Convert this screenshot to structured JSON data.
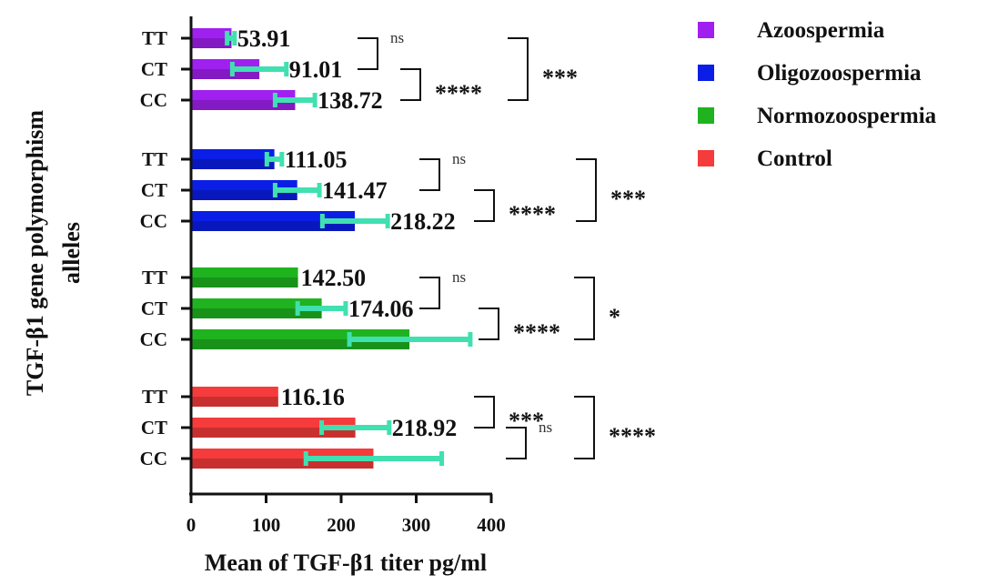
{
  "chart_data": {
    "type": "bar",
    "orientation": "horizontal",
    "xlabel": "Mean of TGF-β1 titer pg/ml",
    "ylabel": [
      "TGF-β1 gene polymorphism",
      "alleles"
    ],
    "xlim": [
      0,
      400
    ],
    "xticks": [
      "0",
      "100",
      "200",
      "300",
      "400"
    ],
    "grid": false,
    "legend_position": "top-right",
    "groups": [
      {
        "name": "Azoospermia",
        "color": "#a020f0",
        "bars": [
          {
            "category": "TT",
            "value": 53.91,
            "label": "53.91",
            "err_low": 48,
            "err_high": 58
          },
          {
            "category": "CT",
            "value": 91.01,
            "label": "91.01",
            "err_low": 55,
            "err_high": 127
          },
          {
            "category": "CC",
            "value": 138.72,
            "label": "138.72",
            "err_low": 112,
            "err_high": 165
          }
        ],
        "sig": [
          {
            "from": 0,
            "to": 1,
            "text": "ns",
            "kind": "ns"
          },
          {
            "from": 1,
            "to": 2,
            "text": "****",
            "kind": "stars"
          },
          {
            "from": 0,
            "to": 2,
            "text": "***",
            "kind": "stars"
          }
        ]
      },
      {
        "name": "Oligozoospermia",
        "color": "#0a1ee6",
        "bars": [
          {
            "category": "TT",
            "value": 111.05,
            "label": "111.05",
            "err_low": 101,
            "err_high": 121
          },
          {
            "category": "CT",
            "value": 141.47,
            "label": "141.47",
            "err_low": 112,
            "err_high": 171
          },
          {
            "category": "CC",
            "value": 218.22,
            "label": "218.22",
            "err_low": 175,
            "err_high": 262
          }
        ],
        "sig": [
          {
            "from": 0,
            "to": 1,
            "text": "ns",
            "kind": "ns"
          },
          {
            "from": 1,
            "to": 2,
            "text": "****",
            "kind": "stars"
          },
          {
            "from": 0,
            "to": 2,
            "text": "***",
            "kind": "stars"
          }
        ]
      },
      {
        "name": "Normozoospermia",
        "color": "#1fb31f",
        "bars": [
          {
            "category": "TT",
            "value": 142.5,
            "label": "142.50",
            "err_low": 142.5,
            "err_high": 142.5
          },
          {
            "category": "CT",
            "value": 174.06,
            "label": "174.06",
            "err_low": 142,
            "err_high": 206
          },
          {
            "category": "CC",
            "value": 291.0,
            "label": "",
            "err_low": 211,
            "err_high": 372
          }
        ],
        "sig": [
          {
            "from": 0,
            "to": 1,
            "text": "ns",
            "kind": "ns"
          },
          {
            "from": 1,
            "to": 2,
            "text": "****",
            "kind": "stars"
          },
          {
            "from": 0,
            "to": 2,
            "text": "*",
            "kind": "stars"
          }
        ]
      },
      {
        "name": "Control",
        "color": "#f53b3b",
        "bars": [
          {
            "category": "TT",
            "value": 116.16,
            "label": "116.16",
            "err_low": 116.16,
            "err_high": 116.16
          },
          {
            "category": "CT",
            "value": 218.92,
            "label": "218.92",
            "err_low": 174,
            "err_high": 264
          },
          {
            "category": "CC",
            "value": 243.0,
            "label": "",
            "err_low": 153,
            "err_high": 334
          }
        ],
        "sig": [
          {
            "from": 0,
            "to": 1,
            "text": "***",
            "kind": "stars"
          },
          {
            "from": 1,
            "to": 2,
            "text": "ns",
            "kind": "ns"
          },
          {
            "from": 0,
            "to": 2,
            "text": "****",
            "kind": "stars"
          }
        ]
      }
    ],
    "error_bar_color": "#40e0b0"
  }
}
